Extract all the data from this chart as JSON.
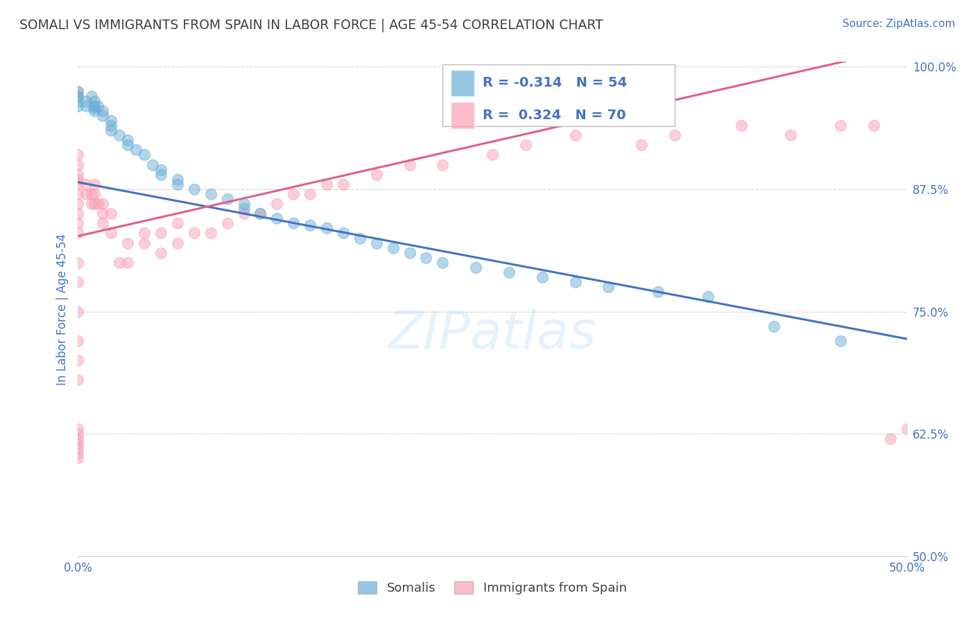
{
  "title": "SOMALI VS IMMIGRANTS FROM SPAIN IN LABOR FORCE | AGE 45-54 CORRELATION CHART",
  "source": "Source: ZipAtlas.com",
  "ylabel": "In Labor Force | Age 45-54",
  "watermark": "ZIPatlas",
  "xlim": [
    0.0,
    0.5
  ],
  "ylim": [
    0.5,
    1.005
  ],
  "xticks": [
    0.0,
    0.1,
    0.2,
    0.3,
    0.4,
    0.5
  ],
  "xtick_labels": [
    "0.0%",
    "",
    "",
    "",
    "",
    "50.0%"
  ],
  "yticks": [
    0.5,
    0.625,
    0.75,
    0.875,
    1.0
  ],
  "ytick_labels": [
    "50.0%",
    "62.5%",
    "75.0%",
    "87.5%",
    "100.0%"
  ],
  "somali_color": "#6baed6",
  "spain_color": "#fa9fb5",
  "somali_line_color": "#4472c4",
  "spain_line_color": "#e06080",
  "somali_R": -0.314,
  "somali_N": 54,
  "spain_R": 0.324,
  "spain_N": 70,
  "legend_label_1": "Somalis",
  "legend_label_2": "Immigrants from Spain",
  "title_color": "#404040",
  "source_color": "#4472c4",
  "r_value_color": "#4472c4",
  "axis_label_color": "#4472c4",
  "somali_x": [
    0.0,
    0.0,
    0.0,
    0.0,
    0.0,
    0.005,
    0.005,
    0.008,
    0.01,
    0.01,
    0.01,
    0.01,
    0.012,
    0.015,
    0.015,
    0.02,
    0.02,
    0.02,
    0.025,
    0.03,
    0.03,
    0.035,
    0.04,
    0.045,
    0.05,
    0.05,
    0.06,
    0.06,
    0.07,
    0.08,
    0.09,
    0.1,
    0.1,
    0.11,
    0.12,
    0.13,
    0.14,
    0.15,
    0.16,
    0.17,
    0.18,
    0.19,
    0.2,
    0.21,
    0.22,
    0.24,
    0.26,
    0.28,
    0.3,
    0.32,
    0.35,
    0.38,
    0.42,
    0.46
  ],
  "somali_y": [
    0.97,
    0.96,
    0.965,
    0.97,
    0.975,
    0.96,
    0.965,
    0.97,
    0.965,
    0.96,
    0.958,
    0.955,
    0.96,
    0.955,
    0.95,
    0.945,
    0.94,
    0.935,
    0.93,
    0.925,
    0.92,
    0.915,
    0.91,
    0.9,
    0.895,
    0.89,
    0.885,
    0.88,
    0.875,
    0.87,
    0.865,
    0.86,
    0.855,
    0.85,
    0.845,
    0.84,
    0.838,
    0.835,
    0.83,
    0.825,
    0.82,
    0.815,
    0.81,
    0.805,
    0.8,
    0.795,
    0.79,
    0.785,
    0.78,
    0.775,
    0.77,
    0.765,
    0.735,
    0.72
  ],
  "spain_x": [
    0.0,
    0.0,
    0.0,
    0.0,
    0.0,
    0.0,
    0.0,
    0.0,
    0.0,
    0.0,
    0.0,
    0.0,
    0.0,
    0.0,
    0.0,
    0.0,
    0.0,
    0.0,
    0.0,
    0.0,
    0.0,
    0.0,
    0.0,
    0.0,
    0.005,
    0.005,
    0.008,
    0.008,
    0.01,
    0.01,
    0.01,
    0.012,
    0.015,
    0.015,
    0.015,
    0.02,
    0.02,
    0.025,
    0.03,
    0.03,
    0.04,
    0.04,
    0.05,
    0.05,
    0.06,
    0.06,
    0.07,
    0.08,
    0.09,
    0.1,
    0.11,
    0.12,
    0.13,
    0.14,
    0.15,
    0.16,
    0.18,
    0.2,
    0.22,
    0.25,
    0.27,
    0.3,
    0.34,
    0.36,
    0.4,
    0.43,
    0.46,
    0.48,
    0.49,
    0.5
  ],
  "spain_y": [
    0.6,
    0.605,
    0.61,
    0.615,
    0.62,
    0.625,
    0.63,
    0.68,
    0.7,
    0.72,
    0.75,
    0.78,
    0.8,
    0.83,
    0.84,
    0.85,
    0.86,
    0.87,
    0.88,
    0.885,
    0.89,
    0.9,
    0.91,
    0.975,
    0.87,
    0.88,
    0.86,
    0.87,
    0.86,
    0.87,
    0.88,
    0.86,
    0.84,
    0.85,
    0.86,
    0.83,
    0.85,
    0.8,
    0.8,
    0.82,
    0.82,
    0.83,
    0.81,
    0.83,
    0.82,
    0.84,
    0.83,
    0.83,
    0.84,
    0.85,
    0.85,
    0.86,
    0.87,
    0.87,
    0.88,
    0.88,
    0.89,
    0.9,
    0.9,
    0.91,
    0.92,
    0.93,
    0.92,
    0.93,
    0.94,
    0.93,
    0.94,
    0.94,
    0.62,
    0.63
  ],
  "background_color": "#ffffff",
  "grid_color": "#cccccc"
}
